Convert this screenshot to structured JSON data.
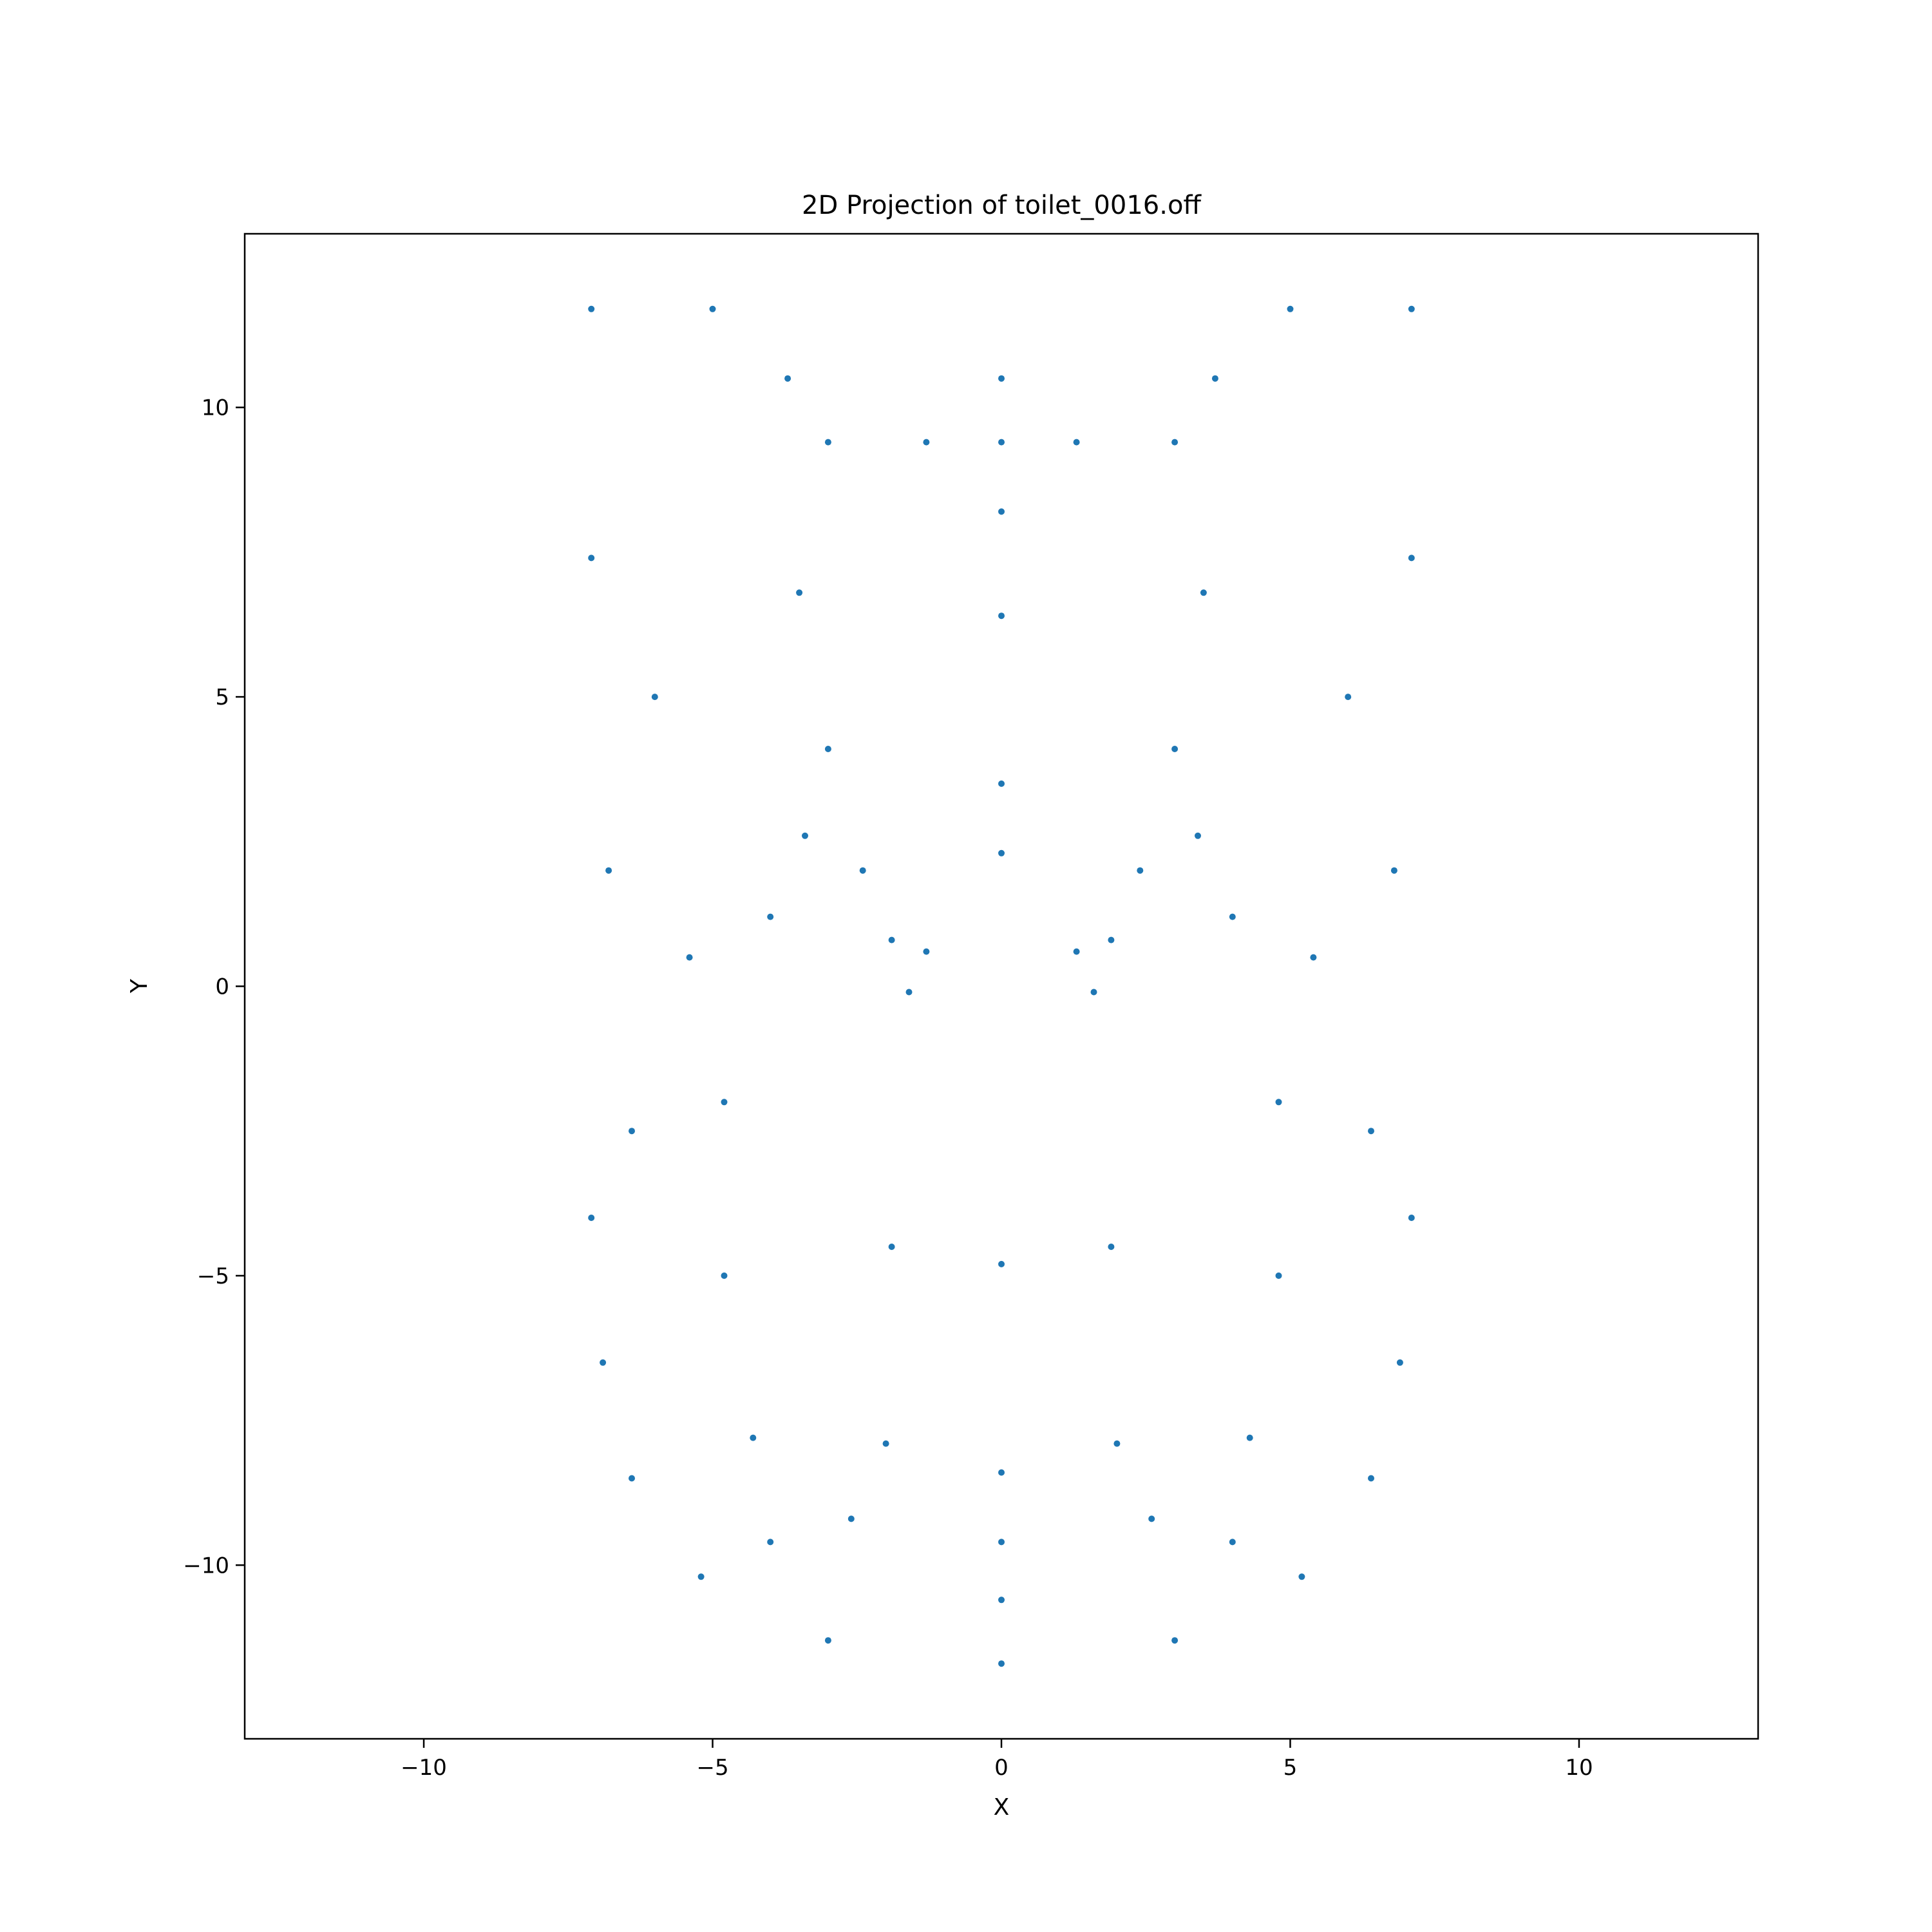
{
  "chart_data": {
    "type": "scatter",
    "title": "2D Projection of toilet_0016.off",
    "xlabel": "X",
    "ylabel": "Y",
    "xlim": [
      -13.1,
      13.1
    ],
    "ylim": [
      -13.0,
      13.0
    ],
    "xticks": [
      -10,
      -5,
      0,
      5,
      10
    ],
    "yticks": [
      -10,
      -5,
      0,
      5,
      10
    ],
    "xtick_labels": [
      "−10",
      "−5",
      "0",
      "5",
      "10"
    ],
    "ytick_labels": [
      "−10",
      "−5",
      "0",
      "5",
      "10"
    ],
    "grid": false,
    "marker_color": "#1f77b4",
    "series": [
      {
        "values": [
          [
            0.0,
            -11.7
          ],
          [
            -3.0,
            -11.3
          ],
          [
            3.0,
            -11.3
          ],
          [
            -5.2,
            -10.2
          ],
          [
            5.2,
            -10.2
          ],
          [
            -6.4,
            -8.5
          ],
          [
            6.4,
            -8.5
          ],
          [
            -6.9,
            -6.5
          ],
          [
            6.9,
            -6.5
          ],
          [
            -7.1,
            -4.0
          ],
          [
            7.1,
            -4.0
          ],
          [
            0.0,
            -10.6
          ],
          [
            -4.0,
            -9.6
          ],
          [
            4.0,
            -9.6
          ],
          [
            0.0,
            -9.6
          ],
          [
            -2.6,
            -9.2
          ],
          [
            2.6,
            -9.2
          ],
          [
            -4.3,
            -7.8
          ],
          [
            4.3,
            -7.8
          ],
          [
            -4.8,
            -5.0
          ],
          [
            4.8,
            -5.0
          ],
          [
            -4.8,
            -2.0
          ],
          [
            4.8,
            -2.0
          ],
          [
            -4.0,
            1.2
          ],
          [
            4.0,
            1.2
          ],
          [
            -2.4,
            2.0
          ],
          [
            2.4,
            2.0
          ],
          [
            0.0,
            2.3
          ],
          [
            0.0,
            3.5
          ],
          [
            -3.4,
            2.6
          ],
          [
            3.4,
            2.6
          ],
          [
            -5.4,
            0.5
          ],
          [
            5.4,
            0.5
          ],
          [
            -6.4,
            -2.5
          ],
          [
            6.4,
            -2.5
          ],
          [
            0.0,
            -8.4
          ],
          [
            -2.0,
            -7.9
          ],
          [
            2.0,
            -7.9
          ],
          [
            -1.9,
            0.8
          ],
          [
            1.9,
            0.8
          ],
          [
            -1.9,
            -4.5
          ],
          [
            1.9,
            -4.5
          ],
          [
            0.0,
            -4.8
          ],
          [
            -1.6,
            -0.1
          ],
          [
            1.6,
            -0.1
          ],
          [
            -1.3,
            0.6
          ],
          [
            1.3,
            0.6
          ],
          [
            -7.1,
            11.7
          ],
          [
            -5.0,
            11.7
          ],
          [
            5.0,
            11.7
          ],
          [
            7.1,
            11.7
          ],
          [
            -7.1,
            7.4
          ],
          [
            7.1,
            7.4
          ],
          [
            0.0,
            6.4
          ],
          [
            -3.5,
            6.8
          ],
          [
            3.5,
            6.8
          ],
          [
            0.0,
            9.4
          ],
          [
            0.0,
            10.5
          ],
          [
            0.0,
            8.2
          ],
          [
            -1.3,
            9.4
          ],
          [
            1.3,
            9.4
          ],
          [
            -3.7,
            10.5
          ],
          [
            3.7,
            10.5
          ],
          [
            -3.0,
            9.4
          ],
          [
            3.0,
            9.4
          ],
          [
            -3.0,
            4.1
          ],
          [
            3.0,
            4.1
          ],
          [
            -6.0,
            5.0
          ],
          [
            6.0,
            5.0
          ],
          [
            -6.8,
            2.0
          ],
          [
            6.8,
            2.0
          ]
        ]
      }
    ]
  }
}
